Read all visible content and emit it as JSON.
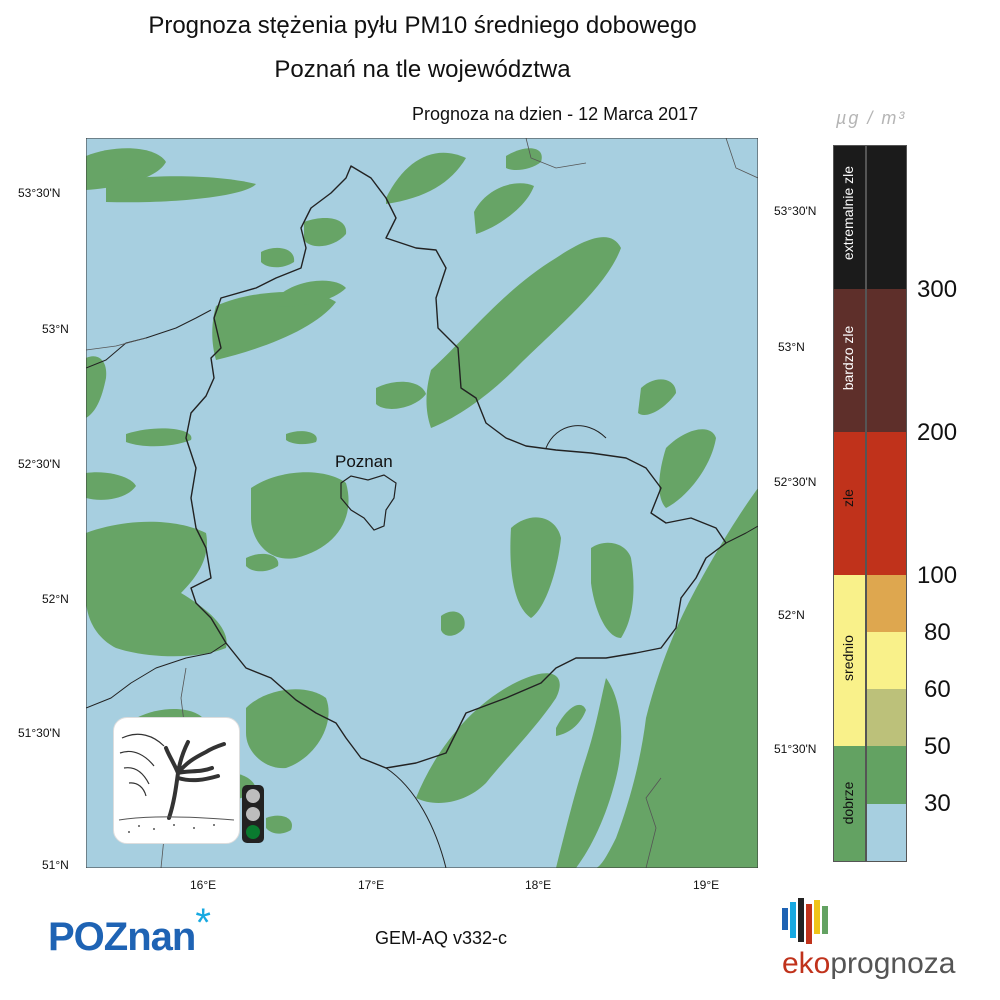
{
  "title": {
    "line1": "Prognoza stężenia pyłu PM10 średniego dobowego",
    "line2": "Poznań na tle województwa"
  },
  "forecast_label": "Prognoza na dzien -  12 Marca 2017",
  "city_label": "Poznan",
  "axes": {
    "left_lat": [
      "53°30'N",
      "53°N",
      "52°30'N",
      "52°N",
      "51°30'N",
      "51°N"
    ],
    "right_lat": [
      "53°30'N",
      "53°N",
      "52°30'N",
      "52°N",
      "51°30'N"
    ],
    "lon": [
      "16°E",
      "17°E",
      "18°E",
      "19°E"
    ]
  },
  "legend": {
    "unit": "µg / m³",
    "categories": [
      {
        "name": "extremalnie zle",
        "color": "#1b1b1b"
      },
      {
        "name": "bardzo zle",
        "color": "#5e2f2a"
      },
      {
        "name": "zle",
        "color": "#c0321b"
      },
      {
        "name": "srednio",
        "color": "#f9f18a"
      },
      {
        "name": "dobrze",
        "color": "#63a262"
      }
    ],
    "bins": [
      {
        "color": "#1b1b1b"
      },
      {
        "color": "#5e2f2a"
      },
      {
        "color": "#c0321b"
      },
      {
        "color": "#dea74f"
      },
      {
        "color": "#f9f18a"
      },
      {
        "color": "#bcc17a"
      },
      {
        "color": "#63a262"
      },
      {
        "color": "#a7cfe0"
      }
    ],
    "thresholds": [
      "300",
      "200",
      "100",
      "80",
      "60",
      "50",
      "30"
    ]
  },
  "colors": {
    "map_background": "#a7cfe0",
    "map_green": "#67a466",
    "border": "#222222",
    "traffic_light_active": "#0a7a2f"
  },
  "traffic_light": {
    "active": "green"
  },
  "footer": {
    "logo_text": "POZnan",
    "logo_star": "*",
    "model": "GEM-AQ v332-c",
    "brand_eko": "eko",
    "brand_prognoza": "prognoza"
  },
  "icons": {
    "wind_tree": "wind-tree-icon",
    "traffic_light": "traffic-light-icon",
    "ekoprognoza_bars": "ekoprognoza-bars-icon"
  }
}
